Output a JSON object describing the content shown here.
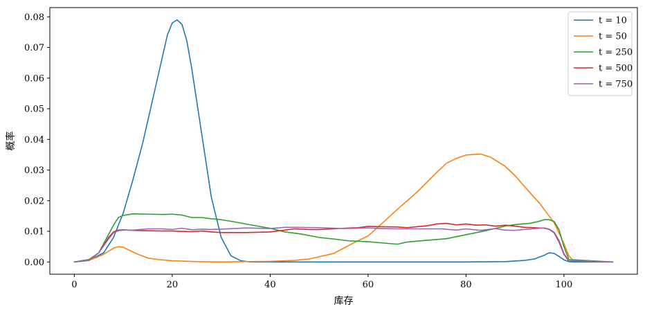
{
  "chart_data": {
    "type": "line",
    "title": "",
    "xlabel": "库存",
    "ylabel": "概率",
    "xlim": [
      -5,
      115
    ],
    "ylim": [
      -0.004,
      0.083
    ],
    "xticks": [
      0,
      20,
      40,
      60,
      80,
      100
    ],
    "yticks": [
      0.0,
      0.01,
      0.02,
      0.03,
      0.04,
      0.05,
      0.06,
      0.07,
      0.08
    ],
    "ytick_labels": [
      "0.00",
      "0.01",
      "0.02",
      "0.03",
      "0.04",
      "0.05",
      "0.06",
      "0.07",
      "0.08"
    ],
    "grid": false,
    "legend_position": "top-right",
    "series": [
      {
        "name": "t = 10",
        "color": "#1f77b4",
        "x": [
          0,
          3,
          6,
          8,
          10,
          12,
          14,
          16,
          18,
          19,
          20,
          21,
          22,
          23,
          24,
          26,
          28,
          30,
          32,
          34,
          36,
          40,
          60,
          80,
          88,
          92,
          94,
          96,
          97,
          98,
          99,
          100,
          101,
          102,
          110
        ],
        "y": [
          0.0,
          0.0005,
          0.003,
          0.008,
          0.016,
          0.027,
          0.039,
          0.053,
          0.067,
          0.074,
          0.078,
          0.079,
          0.0775,
          0.072,
          0.063,
          0.042,
          0.021,
          0.008,
          0.002,
          0.0004,
          0.0,
          0.0,
          0.0,
          0.0,
          0.0001,
          0.0005,
          0.001,
          0.0022,
          0.003,
          0.0028,
          0.0018,
          0.0007,
          0.0001,
          0.0,
          0.0
        ]
      },
      {
        "name": "t = 50",
        "color": "#ff7f0e",
        "x": [
          0,
          3,
          6,
          8,
          9,
          10,
          11,
          13,
          15,
          17,
          20,
          25,
          30,
          35,
          40,
          45,
          48,
          50,
          53,
          55,
          57,
          60,
          63,
          66,
          70,
          74,
          76,
          78,
          80,
          82,
          83,
          85,
          88,
          90,
          92,
          95,
          98,
          100,
          101,
          102,
          110
        ],
        "y": [
          0.0,
          0.0005,
          0.0025,
          0.0045,
          0.005,
          0.0048,
          0.004,
          0.0025,
          0.0013,
          0.0008,
          0.0004,
          0.0001,
          0.0,
          0.0001,
          0.0002,
          0.0005,
          0.001,
          0.0017,
          0.0028,
          0.0045,
          0.0062,
          0.0085,
          0.0128,
          0.0172,
          0.0228,
          0.0292,
          0.0322,
          0.0338,
          0.0349,
          0.0351,
          0.0352,
          0.0342,
          0.0312,
          0.0282,
          0.0245,
          0.0192,
          0.0128,
          0.006,
          0.002,
          0.0003,
          0.0
        ]
      },
      {
        "name": "t = 250",
        "color": "#2ca02c",
        "x": [
          0,
          3,
          5,
          7,
          8,
          9,
          10,
          12,
          15,
          18,
          20,
          22,
          24,
          26,
          28,
          30,
          33,
          36,
          40,
          43,
          46,
          50,
          53,
          56,
          60,
          63,
          66,
          68,
          70,
          73,
          76,
          80,
          84,
          88,
          90,
          93,
          95,
          96,
          97,
          98,
          99,
          100,
          101,
          110
        ],
        "y": [
          0.0,
          0.0008,
          0.003,
          0.009,
          0.012,
          0.0145,
          0.0152,
          0.0157,
          0.0156,
          0.0155,
          0.0156,
          0.0153,
          0.0145,
          0.0145,
          0.0141,
          0.0138,
          0.013,
          0.0121,
          0.011,
          0.0098,
          0.0092,
          0.008,
          0.0075,
          0.0069,
          0.0066,
          0.0062,
          0.0058,
          0.0065,
          0.0068,
          0.0072,
          0.0076,
          0.0089,
          0.0102,
          0.0117,
          0.0122,
          0.0126,
          0.0133,
          0.0138,
          0.0138,
          0.0132,
          0.0105,
          0.005,
          0.0008,
          0.0
        ]
      },
      {
        "name": "t = 500",
        "color": "#d62728",
        "x": [
          0,
          3,
          5,
          7,
          8,
          9,
          10,
          12,
          15,
          18,
          20,
          22,
          24,
          26,
          28,
          30,
          35,
          40,
          45,
          48,
          50,
          55,
          58,
          60,
          63,
          66,
          68,
          70,
          72,
          74,
          76,
          78,
          80,
          82,
          84,
          86,
          88,
          90,
          92,
          94,
          96,
          97,
          98,
          99,
          100,
          101,
          110
        ],
        "y": [
          0.0,
          0.0005,
          0.003,
          0.008,
          0.0098,
          0.0104,
          0.0105,
          0.0103,
          0.0102,
          0.0101,
          0.0101,
          0.01,
          0.0099,
          0.0101,
          0.0098,
          0.0096,
          0.0096,
          0.0098,
          0.0108,
          0.0106,
          0.0106,
          0.011,
          0.0112,
          0.0116,
          0.0115,
          0.0114,
          0.0112,
          0.0115,
          0.0118,
          0.0124,
          0.0126,
          0.0121,
          0.0124,
          0.012,
          0.0121,
          0.0117,
          0.012,
          0.0117,
          0.0113,
          0.0112,
          0.011,
          0.0106,
          0.0095,
          0.0065,
          0.0025,
          0.0003,
          0.0
        ]
      },
      {
        "name": "t = 750",
        "color": "#9467bd",
        "x": [
          0,
          3,
          5,
          7,
          8,
          9,
          10,
          12,
          15,
          18,
          20,
          22,
          24,
          26,
          28,
          30,
          35,
          40,
          43,
          45,
          50,
          55,
          60,
          63,
          66,
          70,
          75,
          78,
          80,
          83,
          86,
          88,
          90,
          92,
          94,
          96,
          97,
          98,
          99,
          100,
          101,
          110
        ],
        "y": [
          0.0,
          0.0005,
          0.003,
          0.0075,
          0.0095,
          0.0102,
          0.0104,
          0.0104,
          0.0108,
          0.0108,
          0.0106,
          0.011,
          0.0105,
          0.0107,
          0.0106,
          0.0107,
          0.0111,
          0.0109,
          0.0113,
          0.0113,
          0.0112,
          0.0109,
          0.0111,
          0.0109,
          0.0108,
          0.0108,
          0.0108,
          0.0104,
          0.0108,
          0.0103,
          0.0109,
          0.0104,
          0.0103,
          0.0106,
          0.0109,
          0.0111,
          0.0107,
          0.0097,
          0.007,
          0.0028,
          0.0004,
          0.0
        ]
      }
    ]
  }
}
